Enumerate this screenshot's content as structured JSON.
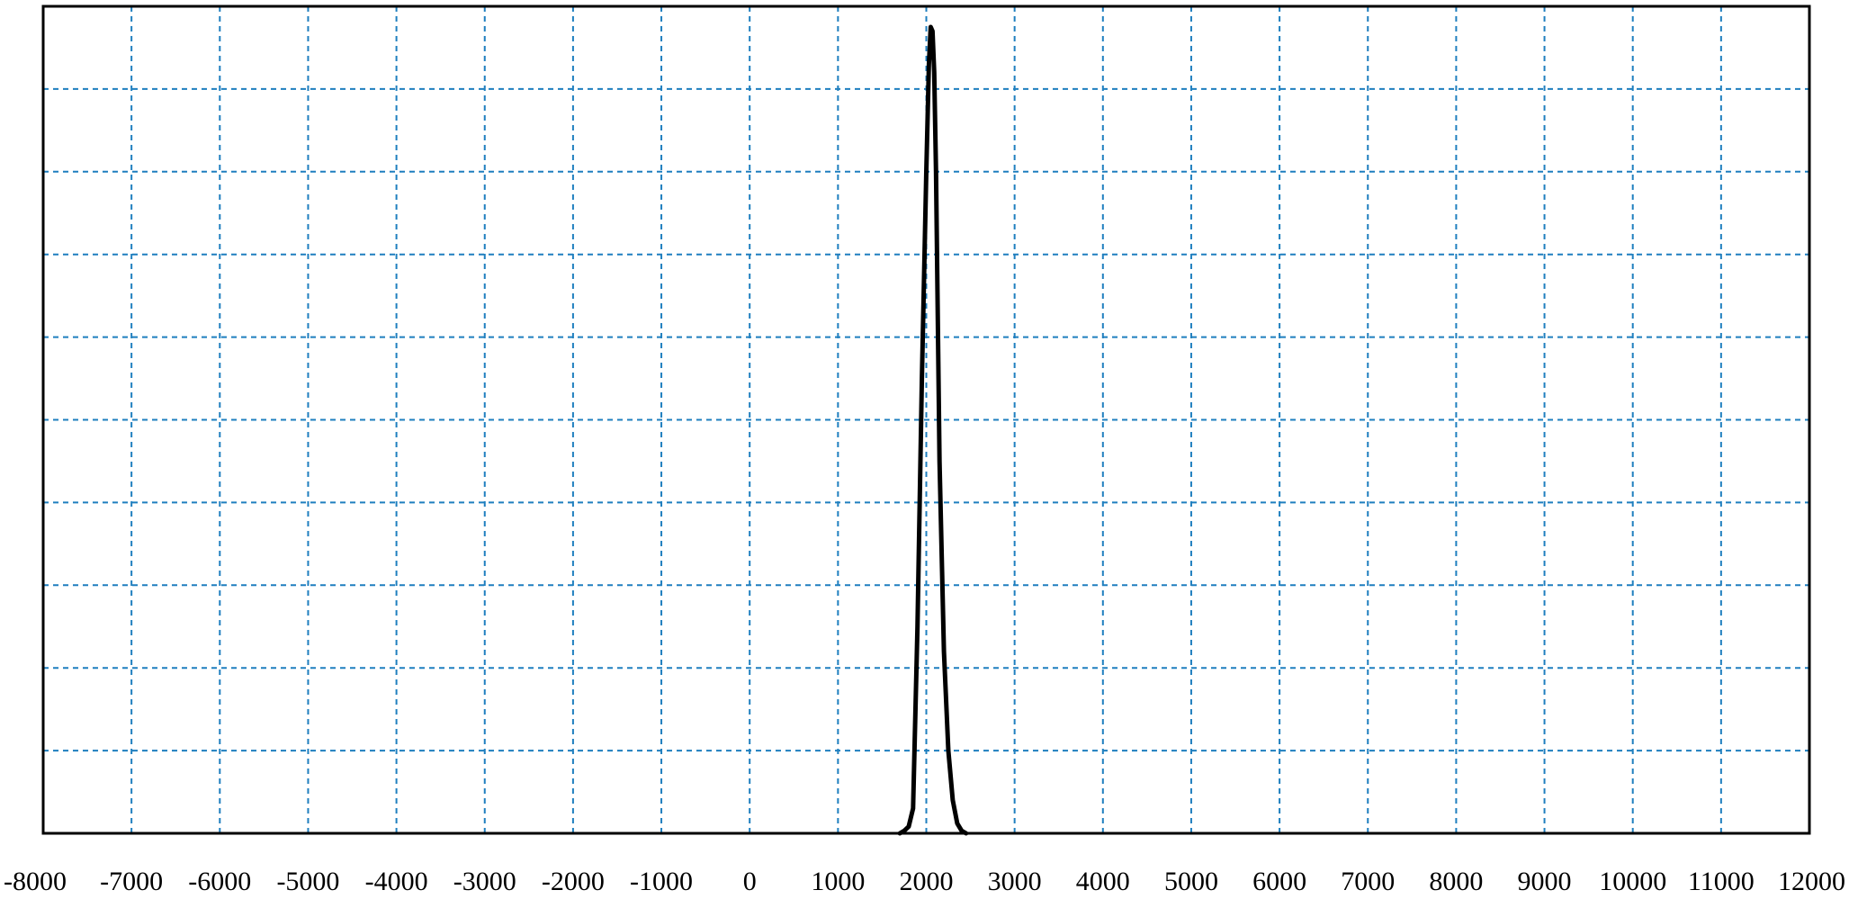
{
  "chart_data": {
    "type": "line",
    "title": "",
    "xlabel": "",
    "ylabel": "",
    "xlim": [
      -8000,
      12000
    ],
    "ylim": [
      0,
      1
    ],
    "x_ticks": [
      -8000,
      -7000,
      -6000,
      -5000,
      -4000,
      -3000,
      -2000,
      -1000,
      0,
      1000,
      2000,
      3000,
      4000,
      5000,
      6000,
      7000,
      8000,
      9000,
      10000,
      11000,
      12000
    ],
    "y_gridlines": 10,
    "grid": true,
    "legend": "none",
    "colors": {
      "grid": "#1f7fbf",
      "line": "#000000",
      "frame": "#000000"
    },
    "series": [
      {
        "x": [
          1700,
          1750,
          1800,
          1850,
          1900,
          1950,
          2000,
          2030,
          2050,
          2070,
          2090,
          2110,
          2130,
          2150,
          2200,
          2250,
          2300,
          2350,
          2400,
          2450
        ],
        "y": [
          0,
          0.003,
          0.008,
          0.03,
          0.25,
          0.55,
          0.8,
          0.93,
          0.975,
          0.97,
          0.92,
          0.8,
          0.62,
          0.45,
          0.22,
          0.1,
          0.04,
          0.012,
          0.003,
          0
        ]
      }
    ]
  }
}
